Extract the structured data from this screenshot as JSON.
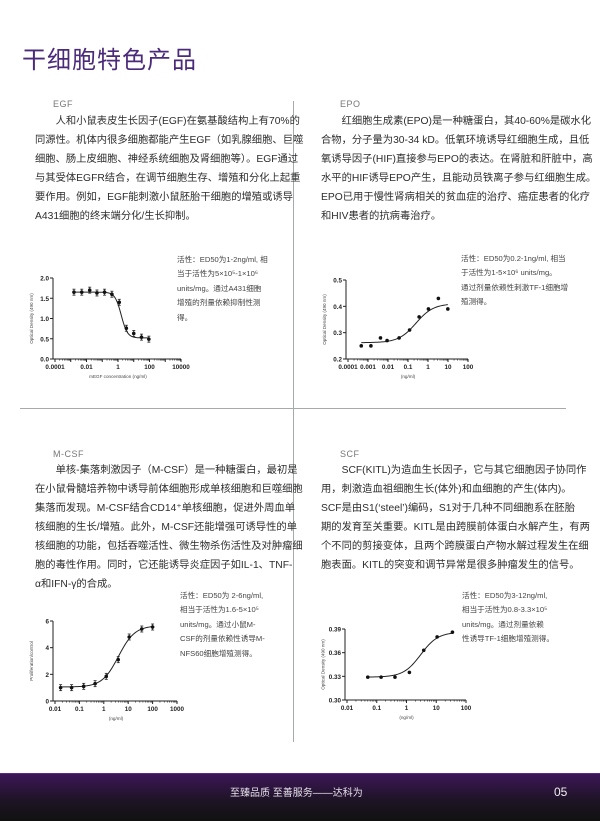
{
  "page_title": "干细胞特色产品",
  "sections": [
    {
      "name": "EGF",
      "lines": [
        "　　人和小鼠表皮生长因子(EGF)在氨基酸结构上有70%的",
        "同源性。机体内很多细胞都能产生EGF（如乳腺细胞、巨噬",
        "细胞、肠上皮细胞、神经系统细胞及肾细胞等）。EGF通过",
        "与其受体EGFR结合，在调节细胞生存、增殖和分化上起重",
        "要作用。例如，EGF能刺激小鼠胚胎干细胞的增殖或诱导",
        "A431细胞的终末端分化/生长抑制。"
      ],
      "note": [
        "活性：ED50为1-2ng/ml, 相",
        "当于活性为5×10⁵-1×10⁶",
        "units/mg。通过A431细胞",
        "增殖的剂量依赖抑制性测",
        "得。"
      ]
    },
    {
      "name": "EPO",
      "lines": [
        "　　红细胞生成素(EPO)是一种糖蛋白，其40-60%是碳水化",
        "合物，分子量为30-34 kD。低氧环境诱导红细胞生成，且低",
        "氧诱导因子(HIF)直接参与EPO的表达。在肾脏和肝脏中，高",
        "水平的HIF诱导EPO产生，且能动员铁离子参与红细胞生成。",
        "EPO已用于慢性肾病相关的贫血症的治疗、癌症患者的化疗",
        "和HIV患者的抗病毒治疗。"
      ],
      "note": [
        "活性：ED50为0.2-1ng/ml, 相当",
        "于活性为1-5×10⁶ units/mg。",
        "通过剂量依赖性刺激TF-1细胞增",
        "殖测得。"
      ]
    },
    {
      "name": "M-CSF",
      "lines": [
        "　　单核-集落刺激因子（M-CSF）是一种糖蛋白，最初是",
        "在小鼠骨髓培养物中诱导前体细胞形成单核细胞和巨噬细胞",
        "集落而发现。M-CSF结合CD14⁺单核细胞，促进外周血单",
        "核细胞的生长/增殖。此外，M-CSF还能增强可诱导性的单",
        "核细胞的功能，包括吞噬活性、微生物杀伤活性及对肿瘤细",
        "胞的毒性作用。同时，它还能诱导炎症因子如IL-1、TNF-",
        "α和IFN-γ的合成。"
      ],
      "note": [
        "活性：ED50为 2-6ng/ml,",
        "相当于活性为1.6-5×10⁵",
        "units/mg。通过小鼠M-",
        "CSF的剂量依赖性诱导M-",
        "NFS60细胞增殖测得。"
      ]
    },
    {
      "name": "SCF",
      "lines": [
        "　　SCF(KITL)为造血生长因子，它与其它细胞因子协同作",
        "用，刺激造血祖细胞生长(体外)和血细胞的产生(体内)。",
        "SCF是由S1(‘steel’)编码，S1对于几种不同细胞系在胚胎",
        "期的发育至关重要。KITL是由跨膜前体蛋白水解产生，有两",
        "个不同的剪接变体，且两个跨膜蛋白产物水解过程发生在细",
        "胞表面。KITL的突变和调节异常是很多肿瘤发生的信号。"
      ],
      "note": [
        "活性：ED50为3-12ng/ml,",
        "相当于活性为0.8-3.3×10⁵",
        "units/mg。通过剂量依赖",
        "性诱导TF-1细胞增殖测得。"
      ]
    }
  ],
  "chart_data": [
    {
      "type": "scatter",
      "title": "",
      "xlabel": "mEGF concentration (ng/ml)",
      "ylabel": "Optical Density (490 nm)",
      "xscale": "log",
      "xlim": [
        0.0001,
        10000
      ],
      "ylim": [
        0,
        2.0
      ],
      "xticks": [
        "0.0001",
        "0.01",
        "1",
        "100",
        "10000"
      ],
      "yticks": [
        "0.0",
        "0.5",
        "1.0",
        "1.5",
        "2.0"
      ],
      "fit_curve": true,
      "error_bars": true,
      "x": [
        0.0016,
        0.005,
        0.016,
        0.046,
        0.14,
        0.41,
        1.2,
        3.4,
        10,
        31,
        91
      ],
      "y": [
        1.65,
        1.65,
        1.7,
        1.63,
        1.65,
        1.6,
        1.4,
        0.76,
        0.63,
        0.54,
        0.49
      ]
    },
    {
      "type": "scatter",
      "title": "",
      "xlabel": "(ng/ml)",
      "ylabel": "Optical Density (490 nm)",
      "xscale": "log",
      "xlim": [
        0.0001,
        100
      ],
      "ylim": [
        0.2,
        0.5
      ],
      "xticks": [
        "0.0001",
        "0.001",
        "0.01",
        "0.1",
        "1",
        "10",
        "100"
      ],
      "yticks": [
        "0.2",
        "0.3",
        "0.4",
        "0.5"
      ],
      "fit_curve": true,
      "error_bars": false,
      "x": [
        0.00046,
        0.0014,
        0.0042,
        0.009,
        0.036,
        0.12,
        0.36,
        1.05,
        3.3,
        9.8
      ],
      "y": [
        0.25,
        0.25,
        0.28,
        0.27,
        0.28,
        0.31,
        0.36,
        0.39,
        0.43,
        0.39
      ]
    },
    {
      "type": "scatter",
      "title": "",
      "xlabel": "(ng/ml)",
      "ylabel": "Proliferation/control",
      "xscale": "log",
      "xlim": [
        0.01,
        1000
      ],
      "ylim": [
        0,
        6
      ],
      "xticks": [
        "0.01",
        "0.1",
        "1",
        "10",
        "100",
        "1000"
      ],
      "yticks": [
        "0",
        "2",
        "4",
        "6"
      ],
      "fit_curve": true,
      "error_bars": true,
      "x": [
        0.017,
        0.048,
        0.15,
        0.44,
        1.26,
        3.9,
        11,
        36,
        100
      ],
      "y": [
        1.0,
        1.0,
        1.1,
        1.3,
        1.85,
        3.1,
        4.8,
        5.4,
        5.55
      ]
    },
    {
      "type": "scatter",
      "title": "",
      "xlabel": "(ng/ml)",
      "ylabel": "Optical Density (490 nm)",
      "xscale": "log",
      "xlim": [
        0.01,
        100
      ],
      "ylim": [
        0.3,
        0.39
      ],
      "xticks": [
        "0.01",
        "0.1",
        "1",
        "10",
        "100"
      ],
      "yticks": [
        "0.30",
        "0.33",
        "0.36",
        "0.39"
      ],
      "fit_curve": true,
      "error_bars": false,
      "x": [
        0.05,
        0.14,
        0.41,
        1.25,
        3.8,
        10.7,
        35
      ],
      "y": [
        0.329,
        0.329,
        0.329,
        0.335,
        0.363,
        0.38,
        0.386
      ]
    }
  ],
  "footer": {
    "slogan": "至臻品质 至善服务——达科为",
    "page_number": "05"
  },
  "colors": {
    "title": "#4b2a7a",
    "footer": "#3d1657",
    "divider": "#a7a9ac"
  }
}
